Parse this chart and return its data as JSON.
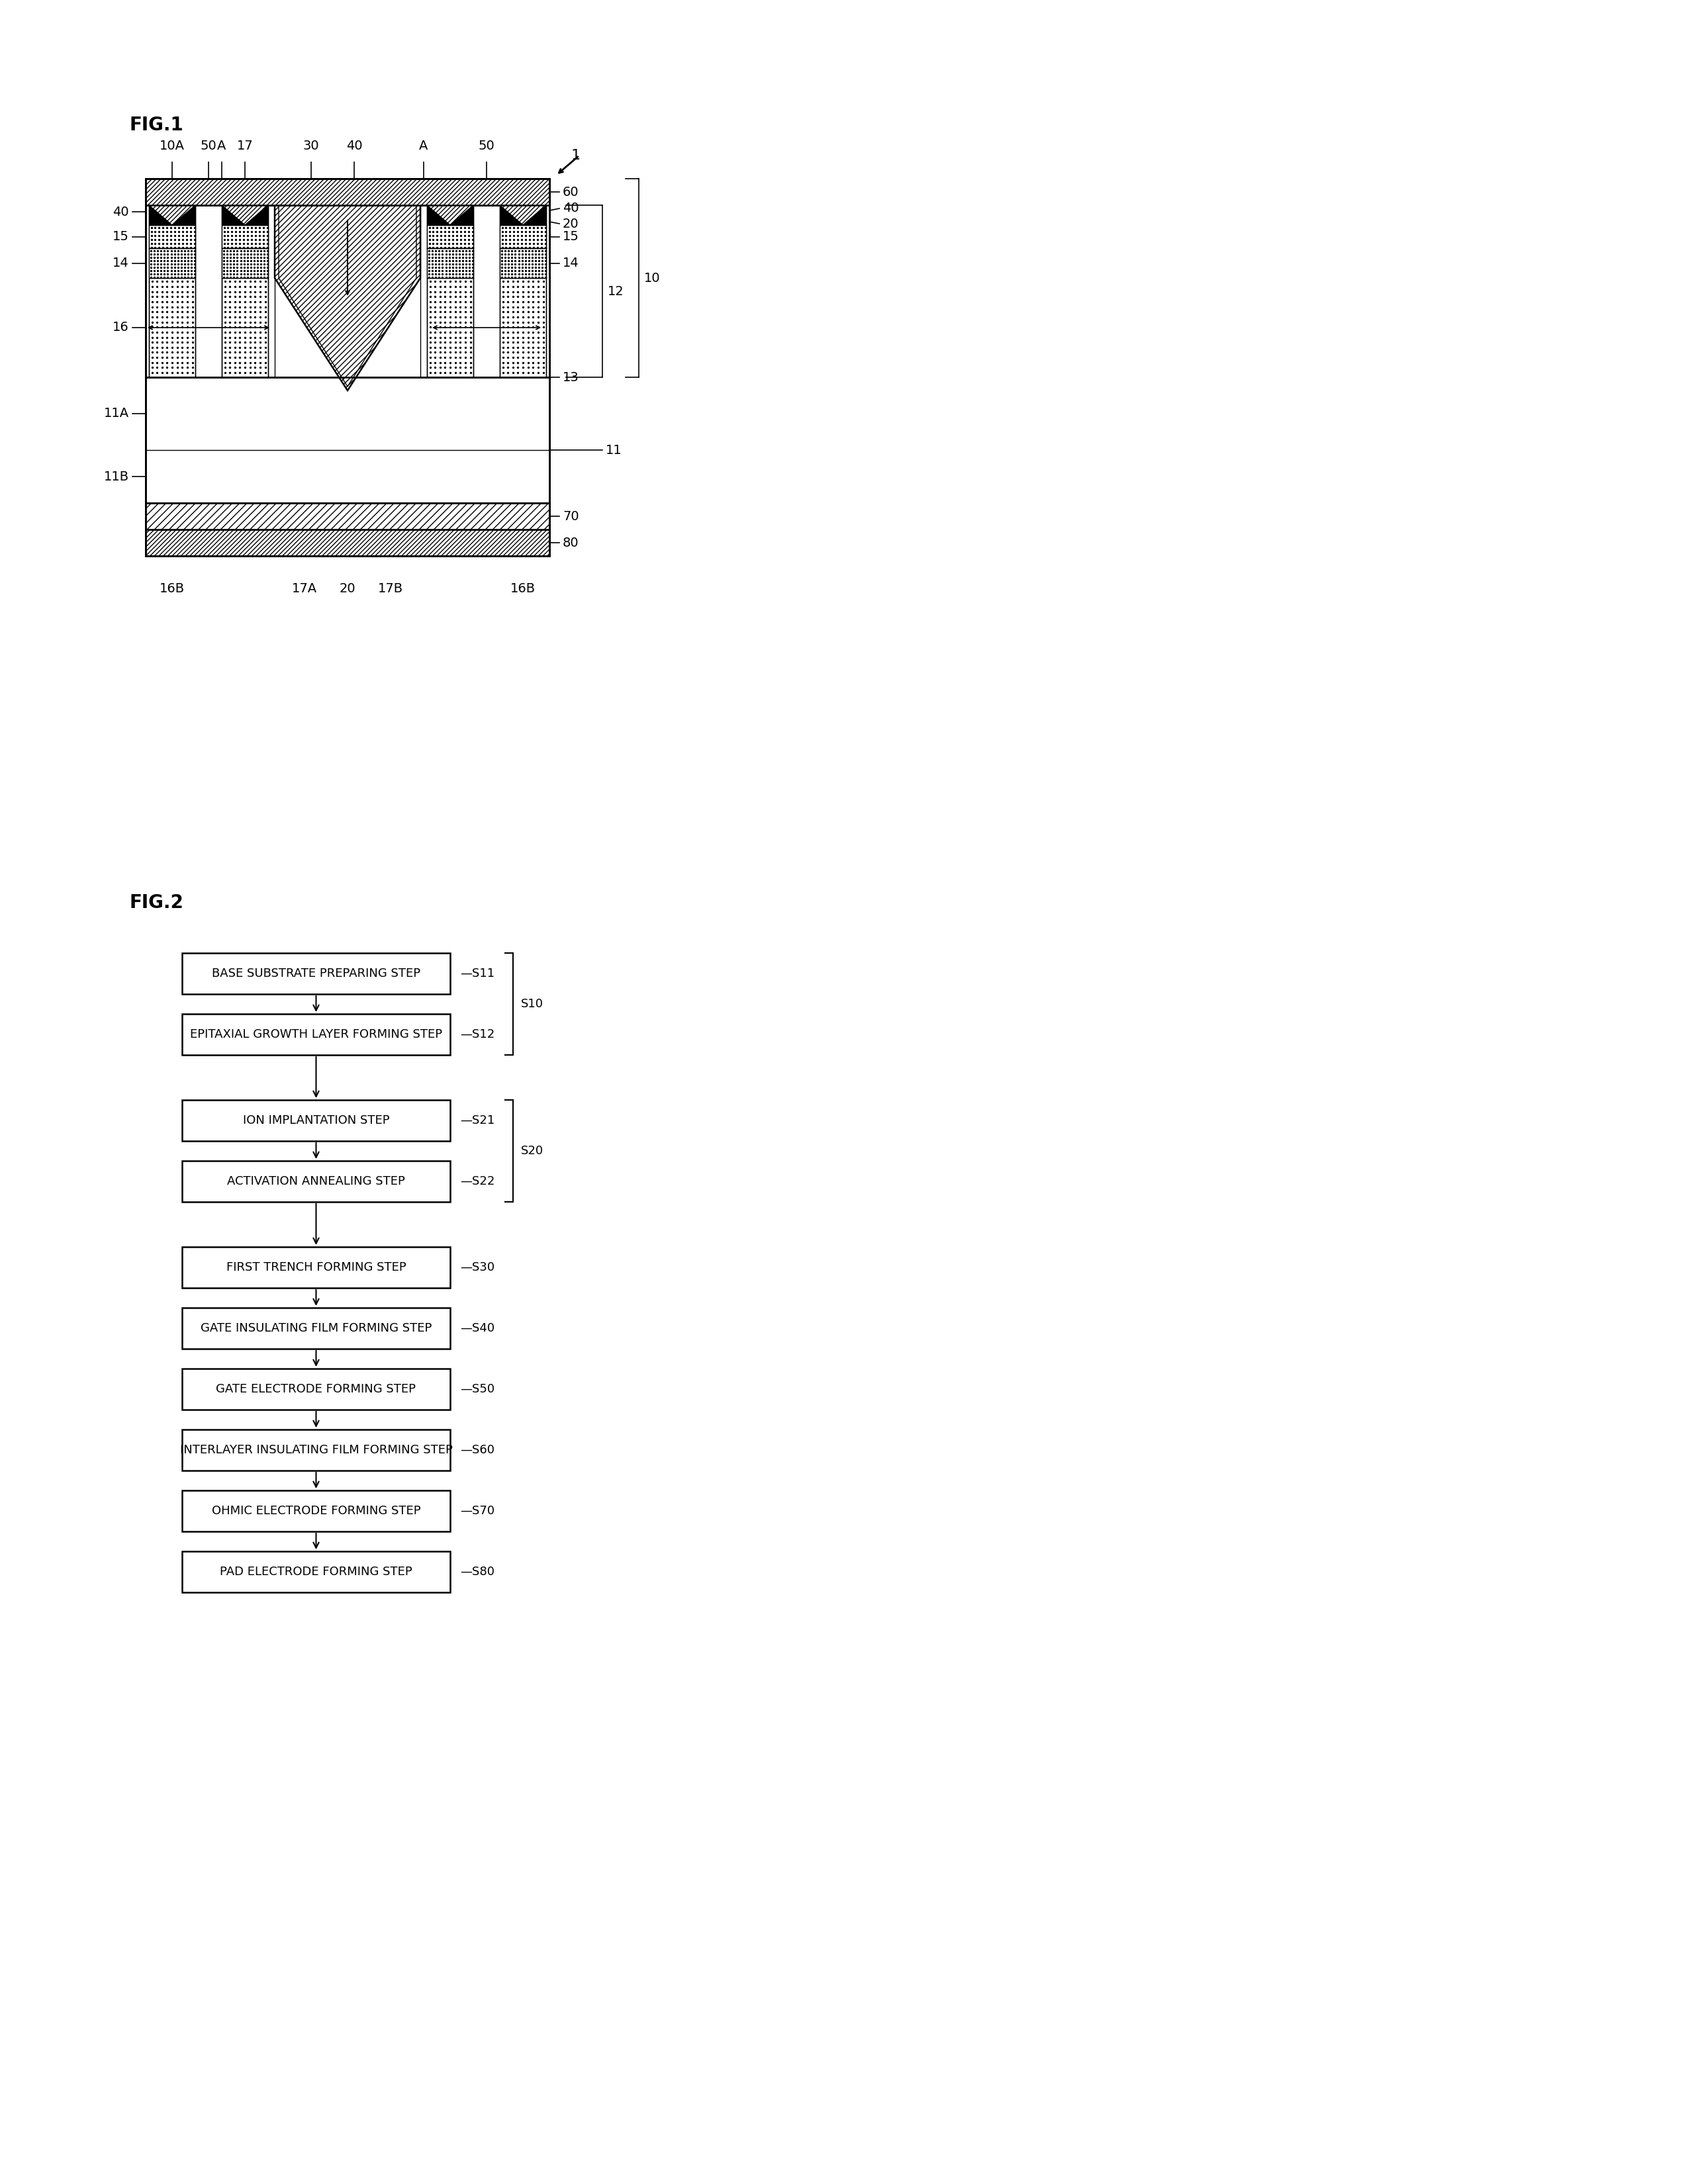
{
  "fig1_title": "FIG.1",
  "fig2_title": "FIG.2",
  "flowchart_steps": [
    {
      "label": "BASE SUBSTRATE PREPARING STEP",
      "step_id": "S11"
    },
    {
      "label": "EPITAXIAL GROWTH LAYER FORMING STEP",
      "step_id": "S12"
    },
    {
      "label": "ION IMPLANTATION STEP",
      "step_id": "S21"
    },
    {
      "label": "ACTIVATION ANNEALING STEP",
      "step_id": "S22"
    },
    {
      "label": "FIRST TRENCH FORMING STEP",
      "step_id": "S30"
    },
    {
      "label": "GATE INSULATING FILM FORMING STEP",
      "step_id": "S40"
    },
    {
      "label": "GATE ELECTRODE FORMING STEP",
      "step_id": "S50"
    },
    {
      "label": "INTERLAYER INSULATING FILM FORMING STEP",
      "step_id": "S60"
    },
    {
      "label": "OHMIC ELECTRODE FORMING STEP",
      "step_id": "S70"
    },
    {
      "label": "PAD ELECTRODE FORMING STEP",
      "step_id": "S80"
    }
  ],
  "bg_color": "#ffffff",
  "box_color": "#ffffff",
  "box_edge_color": "#000000",
  "text_color": "#000000",
  "lw_main": 1.8,
  "lw_thin": 1.0,
  "fig1_label_fs": 20,
  "fig2_label_fs": 20,
  "ref_fs": 14,
  "flow_fs": 13,
  "flow_sid_fs": 13
}
